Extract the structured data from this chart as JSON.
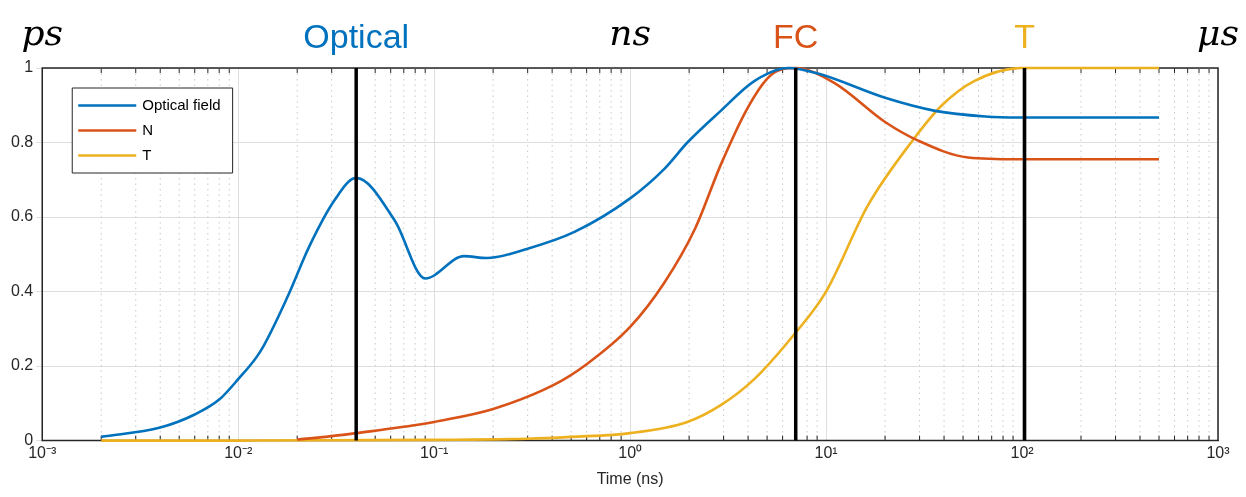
{
  "chart_data": {
    "type": "line",
    "xlabel": "Time (ns)",
    "log": "x",
    "xlim": [
      0.001,
      1000
    ],
    "xticks": [
      {
        "value": 0.001,
        "label": "10⁻³"
      },
      {
        "value": 0.01,
        "label": "10⁻²"
      },
      {
        "value": 0.1,
        "label": "10⁻¹"
      },
      {
        "value": 1,
        "label": "10⁰"
      },
      {
        "value": 10,
        "label": "10¹"
      },
      {
        "value": 100,
        "label": "10²"
      },
      {
        "value": 1000,
        "label": "10³"
      }
    ],
    "ylim": [
      0,
      1
    ],
    "yticks": [
      0,
      0.2,
      0.4,
      0.6,
      0.8,
      1
    ],
    "grid": true,
    "legend": "top left",
    "marker": "none",
    "line_style": "solid",
    "series": [
      {
        "name": "Optical field",
        "color": "#0072bd",
        "x": [
          0.002,
          0.004,
          0.006,
          0.008,
          0.01,
          0.013,
          0.018,
          0.023,
          0.031,
          0.04,
          0.063,
          0.09,
          0.142,
          0.186,
          0.3,
          0.52,
          1,
          1.5,
          1.96,
          2.9,
          4.3,
          6.4,
          9.1,
          20,
          36,
          65,
          100,
          500
        ],
        "values": [
          0.01,
          0.035,
          0.07,
          0.11,
          0.165,
          0.24,
          0.39,
          0.52,
          0.645,
          0.705,
          0.59,
          0.435,
          0.495,
          0.49,
          0.515,
          0.56,
          0.65,
          0.73,
          0.8,
          0.885,
          0.965,
          1.0,
          0.985,
          0.92,
          0.885,
          0.87,
          0.867,
          0.867
        ]
      },
      {
        "name": "N",
        "color": "#d95319",
        "x": [
          0.02,
          0.028,
          0.04,
          0.089,
          0.1,
          0.2,
          0.41,
          0.6,
          1,
          1.5,
          2.15,
          2.9,
          4,
          5.2,
          7,
          11,
          20,
          29.5,
          53,
          100,
          500
        ],
        "values": [
          0.003,
          0.01,
          0.02,
          0.045,
          0.05,
          0.085,
          0.15,
          0.205,
          0.305,
          0.425,
          0.57,
          0.74,
          0.895,
          0.98,
          1.0,
          0.96,
          0.855,
          0.805,
          0.76,
          0.755,
          0.755
        ]
      },
      {
        "name": "T",
        "color": "#edb120",
        "x": [
          0.002,
          0.01,
          0.1,
          0.3,
          0.5,
          1,
          1.96,
          2.9,
          4.3,
          7,
          10,
          16.3,
          27.6,
          39,
          57,
          100,
          500
        ],
        "values": [
          0,
          0,
          0.002,
          0.005,
          0.01,
          0.02,
          0.05,
          0.095,
          0.165,
          0.29,
          0.4,
          0.63,
          0.805,
          0.9,
          0.965,
          1.0,
          1.0
        ]
      }
    ],
    "ref_lines": [
      {
        "axis": "x",
        "value": 0.04,
        "label": "Optical",
        "color": "#000000"
      },
      {
        "axis": "x",
        "value": 7,
        "label": "FC",
        "color": "#000000"
      },
      {
        "axis": "x",
        "value": 103,
        "label": "T",
        "color": "#000000"
      }
    ],
    "annotations": [
      "ps",
      "ns",
      "μs"
    ]
  }
}
